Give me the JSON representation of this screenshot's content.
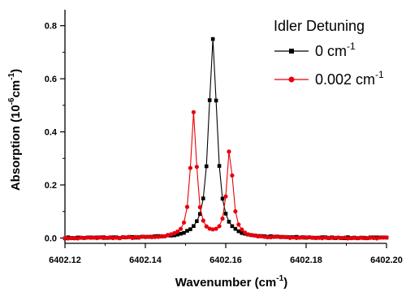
{
  "chart_data": {
    "type": "line",
    "xlabel": "Wavenumber (cm",
    "xlabel_sup": "-1",
    "xlabel_end": ")",
    "ylabel": "Absorption (10",
    "ylabel_sup": "-6",
    "ylabel_mid": "cm",
    "ylabel_sup2": "-1",
    "ylabel_end": ")",
    "xlim": [
      6402.12,
      6402.2
    ],
    "ylim": [
      -0.02,
      0.86
    ],
    "x_ticks": [
      "6402.12",
      "6402.14",
      "6402.16",
      "6402.18",
      "6402.20"
    ],
    "x_tick_values": [
      6402.12,
      6402.14,
      6402.16,
      6402.18,
      6402.2
    ],
    "y_ticks": [
      "0.0",
      "0.2",
      "0.4",
      "0.6",
      "0.8"
    ],
    "y_tick_values": [
      0.0,
      0.2,
      0.4,
      0.6,
      0.8
    ],
    "legend_title": "Idler Detuning",
    "legend_position": "top-right",
    "series": [
      {
        "name": "0 cm",
        "name_sup": "-1",
        "color": "#000000",
        "marker": "square",
        "center": 6402.1568,
        "peak": 0.75,
        "width": 0.0012
      },
      {
        "name": "0.002 cm",
        "name_sup": "-1",
        "color": "#e8000b",
        "marker": "circle",
        "center1": 6402.152,
        "peak1": 0.47,
        "center2": 6402.161,
        "peak2": 0.335,
        "width": 0.0009
      }
    ],
    "baseline_noise": 0.004,
    "x_start": 6402.12,
    "x_end": 6402.2,
    "x_step": 0.0008
  }
}
